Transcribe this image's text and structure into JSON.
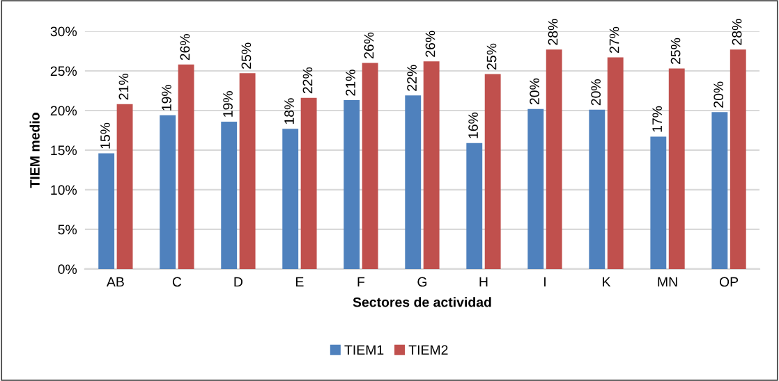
{
  "chart_data": {
    "type": "bar",
    "xlabel": "Sectores de actividad",
    "ylabel": "TIEM medio",
    "categories": [
      "AB",
      "C",
      "D",
      "E",
      "F",
      "G",
      "H",
      "I",
      "K",
      "MN",
      "OP"
    ],
    "series": [
      {
        "name": "TIEM1",
        "color": "#4f81bd",
        "values": [
          14.6,
          19.4,
          18.6,
          17.7,
          21.3,
          21.9,
          15.9,
          20.2,
          20.1,
          16.7,
          19.8
        ],
        "value_labels": [
          "15%",
          "19%",
          "19%",
          "18%",
          "21%",
          "22%",
          "16%",
          "20%",
          "20%",
          "17%",
          "20%"
        ]
      },
      {
        "name": "TIEM2",
        "color": "#c0504d",
        "values": [
          20.8,
          25.8,
          24.7,
          21.6,
          26.0,
          26.2,
          24.6,
          27.7,
          26.7,
          25.3,
          27.7
        ],
        "value_labels": [
          "21%",
          "26%",
          "25%",
          "22%",
          "26%",
          "26%",
          "25%",
          "28%",
          "27%",
          "25%",
          "28%"
        ]
      }
    ],
    "ylim": [
      0,
      30
    ],
    "yticks": [
      {
        "value": 0,
        "label": "0%"
      },
      {
        "value": 5,
        "label": "5%"
      },
      {
        "value": 10,
        "label": "10%"
      },
      {
        "value": 15,
        "label": "15%"
      },
      {
        "value": 20,
        "label": "20%"
      },
      {
        "value": 25,
        "label": "25%"
      },
      {
        "value": 30,
        "label": "30%"
      }
    ],
    "grid": "y",
    "legend": "bottom"
  }
}
